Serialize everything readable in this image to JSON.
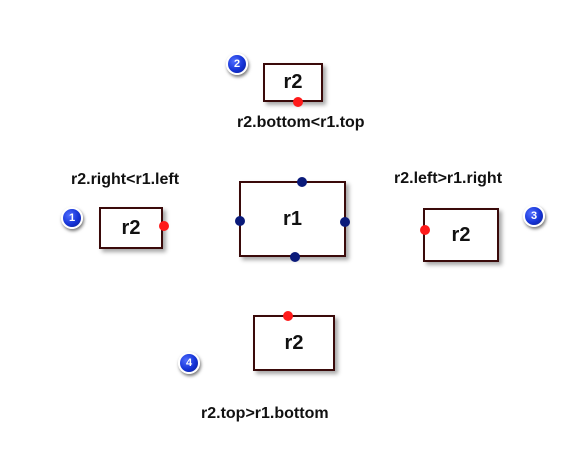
{
  "diagram": {
    "reference": {
      "label": "r1"
    },
    "cases": [
      {
        "number": "1",
        "label": "r2",
        "condition": "r2.right<r1.left"
      },
      {
        "number": "2",
        "label": "r2",
        "condition": "r2.bottom<r1.top"
      },
      {
        "number": "3",
        "label": "r2",
        "condition": "r2.left>r1.right"
      },
      {
        "number": "4",
        "label": "r2",
        "condition": "r2.top>r1.bottom"
      }
    ]
  },
  "colors": {
    "box_border": "#3a0a0a",
    "r2_edge_dot": "#ff1a1a",
    "r1_edge_dot": "#0a1a7a",
    "badge": "#1533d6"
  }
}
